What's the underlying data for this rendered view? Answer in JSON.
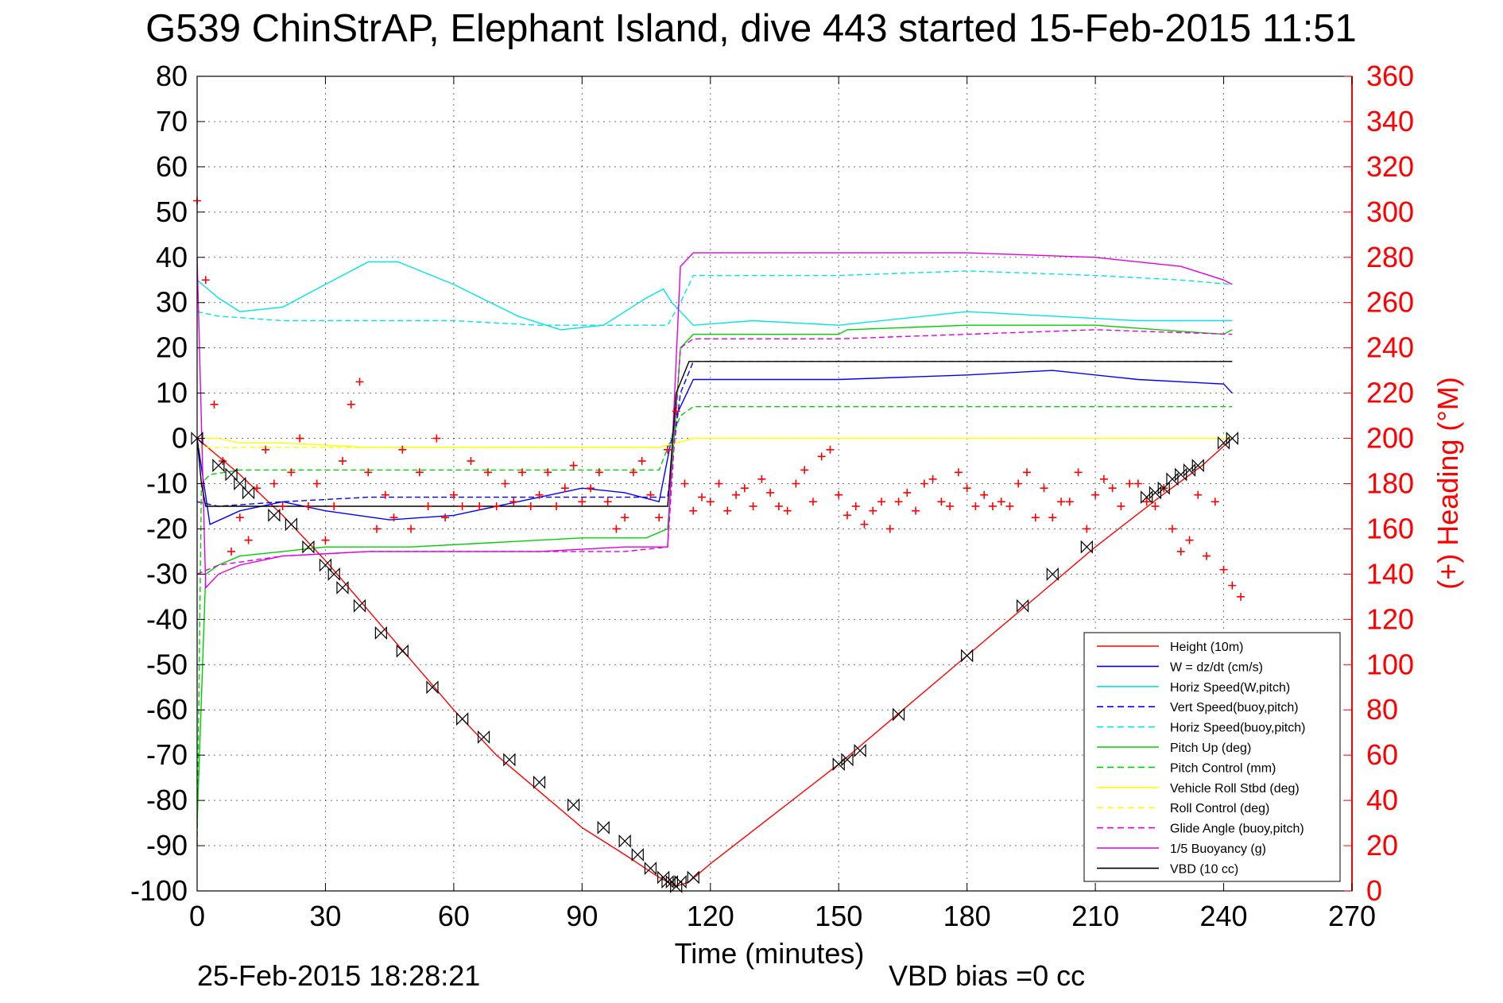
{
  "chart_data": {
    "type": "line",
    "title": "G539 ChinStrAP, Elephant Island, dive 443 started 15-Feb-2015 11:51",
    "xlabel": "Time (minutes)",
    "ylabel_right": "(+) Heading (°M)",
    "xlim": [
      0,
      270
    ],
    "ylim": [
      -100,
      80
    ],
    "y2lim": [
      0,
      360
    ],
    "x_ticks": [
      0,
      30,
      60,
      90,
      120,
      150,
      180,
      210,
      240,
      270
    ],
    "y_ticks": [
      -100,
      -90,
      -80,
      -70,
      -60,
      -50,
      -40,
      -30,
      -20,
      -10,
      0,
      10,
      20,
      30,
      40,
      50,
      60,
      70,
      80
    ],
    "y2_ticks": [
      0,
      20,
      40,
      60,
      80,
      100,
      120,
      140,
      160,
      180,
      200,
      220,
      240,
      260,
      280,
      300,
      320,
      340,
      360
    ],
    "grid": true,
    "legend_position": "bottom-right",
    "footer_left": "25-Feb-2015 18:28:21",
    "footer_right": "VBD bias =0 cc",
    "series": [
      {
        "name": "Height (10m)",
        "color": "#ff0000",
        "style": "solid",
        "x": [
          0,
          10,
          20,
          30,
          40,
          50,
          60,
          70,
          80,
          90,
          100,
          108,
          112,
          115,
          120,
          135,
          150,
          165,
          180,
          195,
          210,
          225,
          235,
          242
        ],
        "y": [
          0,
          -8,
          -17,
          -27,
          -38,
          -49,
          -60,
          -70,
          -78,
          -86,
          -92,
          -97,
          -99,
          -98,
          -94,
          -83,
          -72,
          -60,
          -48,
          -36,
          -24,
          -13,
          -6,
          0
        ]
      },
      {
        "name": "W = dz/dt (cm/s)",
        "color": "#0000ff",
        "style": "solid",
        "x": [
          0,
          3,
          10,
          20,
          30,
          45,
          60,
          75,
          90,
          100,
          108,
          112,
          116,
          130,
          150,
          180,
          200,
          220,
          240,
          242
        ],
        "y": [
          0,
          -19,
          -16,
          -14,
          -16,
          -18,
          -17,
          -14,
          -11,
          -12,
          -14,
          5,
          13,
          13,
          13,
          14,
          15,
          13,
          12,
          10
        ]
      },
      {
        "name": "Horiz Speed(W,pitch)",
        "color": "#00e5e5",
        "style": "solid",
        "x": [
          0,
          5,
          10,
          20,
          30,
          40,
          47,
          60,
          75,
          85,
          95,
          105,
          109,
          111,
          116,
          130,
          150,
          180,
          200,
          220,
          242
        ],
        "y": [
          35,
          31,
          28,
          29,
          34,
          39,
          39,
          34,
          27,
          24,
          25,
          31,
          33,
          30,
          25,
          26,
          25,
          28,
          27,
          26,
          26
        ]
      },
      {
        "name": "Vert Speed(buoy,pitch)",
        "color": "#0000ff",
        "style": "dashed",
        "x": [
          0,
          5,
          20,
          40,
          60,
          80,
          100,
          110,
          113,
          116,
          140,
          170,
          200,
          230,
          242
        ],
        "y": [
          -14,
          -15,
          -14,
          -13,
          -13,
          -13,
          -13,
          -13,
          10,
          17,
          17,
          17,
          17,
          17,
          17
        ]
      },
      {
        "name": "Horiz Speed(buoy,pitch)",
        "color": "#00e5e5",
        "style": "dashed",
        "x": [
          0,
          5,
          20,
          40,
          60,
          80,
          100,
          110,
          113,
          116,
          150,
          180,
          210,
          230,
          242
        ],
        "y": [
          28,
          27,
          26,
          26,
          26,
          25,
          25,
          25,
          30,
          36,
          36,
          37,
          36,
          35,
          34
        ]
      },
      {
        "name": "Pitch Up (deg)",
        "color": "#00d000",
        "style": "solid",
        "x": [
          0,
          2,
          5,
          10,
          20,
          30,
          50,
          70,
          90,
          105,
          110,
          113,
          116,
          150,
          152,
          180,
          210,
          240,
          242
        ],
        "y": [
          -85,
          -30,
          -28,
          -26,
          -25,
          -24,
          -24,
          -23,
          -22,
          -22,
          -20,
          20,
          23,
          23,
          24,
          25,
          25,
          23,
          24
        ]
      },
      {
        "name": "Pitch Control (mm)",
        "color": "#00d000",
        "style": "dashed",
        "x": [
          0,
          1,
          3,
          10,
          40,
          80,
          108,
          113,
          116,
          150,
          180,
          210,
          242
        ],
        "y": [
          -90,
          -10,
          -8,
          -7,
          -7,
          -7,
          -7,
          5,
          7,
          7,
          7,
          7,
          7
        ]
      },
      {
        "name": "Vehicle Roll Stbd (deg)",
        "color": "#ffff00",
        "style": "solid",
        "x": [
          0,
          5,
          10,
          20,
          40,
          60,
          80,
          100,
          108,
          112,
          116,
          140,
          170,
          200,
          230,
          242
        ],
        "y": [
          0,
          0,
          -1,
          -1,
          -2,
          -2,
          -2,
          -2,
          -2,
          -1,
          0,
          0,
          0,
          0,
          0,
          0
        ]
      },
      {
        "name": "Roll Control (deg)",
        "color": "#ffff00",
        "style": "dashed",
        "x": [
          0,
          10,
          40,
          80,
          108,
          112,
          116,
          150,
          200,
          242
        ],
        "y": [
          -2,
          -2,
          -2,
          -2,
          -2,
          -1,
          0,
          0,
          0,
          0
        ]
      },
      {
        "name": "Glide Angle (buoy,pitch)",
        "color": "#e000e0",
        "style": "dashed",
        "x": [
          0,
          5,
          20,
          40,
          60,
          80,
          100,
          110,
          113,
          116,
          150,
          180,
          210,
          242
        ],
        "y": [
          -30,
          -28,
          -26,
          -25,
          -25,
          -25,
          -25,
          -24,
          20,
          22,
          22,
          23,
          24,
          23
        ]
      },
      {
        "name": "1/5 Buoyancy (g)",
        "color": "#e000e0",
        "style": "solid",
        "x": [
          0,
          2,
          5,
          10,
          20,
          40,
          60,
          80,
          100,
          110,
          113,
          116,
          150,
          180,
          210,
          230,
          240,
          242
        ],
        "y": [
          40,
          -33,
          -30,
          -28,
          -26,
          -25,
          -25,
          -25,
          -24,
          -24,
          38,
          41,
          41,
          41,
          40,
          38,
          35,
          34
        ]
      },
      {
        "name": "VBD (10 cc)",
        "color": "#000000",
        "style": "solid",
        "x": [
          0,
          1,
          2,
          110,
          112,
          115,
          242
        ],
        "y": [
          0,
          -10,
          -15,
          -15,
          10,
          17,
          17
        ]
      }
    ],
    "heading_series": {
      "name": "Heading (°M)",
      "color": "#ff0000",
      "marker": "+",
      "axis": "right",
      "x": [
        0,
        2,
        4,
        6,
        8,
        10,
        12,
        14,
        16,
        18,
        20,
        22,
        24,
        26,
        28,
        30,
        32,
        34,
        36,
        38,
        40,
        42,
        44,
        46,
        48,
        50,
        52,
        54,
        56,
        58,
        60,
        62,
        64,
        66,
        68,
        70,
        72,
        74,
        76,
        78,
        80,
        82,
        84,
        86,
        88,
        90,
        92,
        94,
        96,
        98,
        100,
        102,
        104,
        106,
        108,
        110,
        112,
        114,
        116,
        118,
        120,
        122,
        124,
        126,
        128,
        130,
        132,
        134,
        136,
        138,
        140,
        142,
        144,
        146,
        148,
        150,
        152,
        154,
        156,
        158,
        160,
        162,
        164,
        166,
        168,
        170,
        172,
        174,
        176,
        178,
        180,
        182,
        184,
        186,
        188,
        190,
        192,
        194,
        196,
        198,
        200,
        202,
        204,
        206,
        208,
        210,
        212,
        214,
        216,
        218,
        220,
        222,
        224,
        226,
        228,
        230,
        232,
        234,
        236,
        238,
        240,
        242,
        244
      ],
      "y": [
        305,
        270,
        215,
        190,
        150,
        165,
        155,
        178,
        195,
        180,
        170,
        185,
        200,
        170,
        180,
        155,
        170,
        190,
        215,
        225,
        185,
        160,
        175,
        165,
        195,
        160,
        185,
        170,
        200,
        165,
        175,
        170,
        190,
        170,
        185,
        170,
        180,
        172,
        185,
        170,
        175,
        185,
        170,
        178,
        188,
        172,
        178,
        185,
        172,
        160,
        165,
        185,
        190,
        175,
        165,
        195,
        212,
        180,
        168,
        174,
        172,
        180,
        168,
        175,
        178,
        170,
        182,
        176,
        170,
        168,
        180,
        186,
        172,
        192,
        195,
        175,
        166,
        170,
        162,
        168,
        172,
        160,
        172,
        176,
        168,
        180,
        182,
        172,
        170,
        185,
        178,
        170,
        175,
        170,
        172,
        170,
        180,
        185,
        165,
        178,
        165,
        172,
        172,
        185,
        160,
        175,
        182,
        178,
        170,
        180,
        180,
        172,
        170,
        178,
        160,
        150,
        155,
        175,
        148,
        172,
        142,
        135,
        130
      ]
    },
    "dive_markers": {
      "marker": "hourglass",
      "color": "#000000",
      "x": [
        0,
        5,
        8,
        10,
        12,
        18,
        22,
        26,
        30,
        32,
        34,
        38,
        43,
        48,
        55,
        62,
        67,
        73,
        80,
        88,
        95,
        100,
        103,
        106,
        109,
        110,
        111,
        112,
        113,
        116,
        150,
        152,
        155,
        164,
        180,
        193,
        200,
        208,
        222,
        224,
        226,
        228,
        230,
        232,
        234,
        240,
        242
      ],
      "y": [
        0,
        -6,
        -8,
        -10,
        -12,
        -17,
        -19,
        -24,
        -28,
        -30,
        -33,
        -37,
        -43,
        -47,
        -55,
        -62,
        -66,
        -71,
        -76,
        -81,
        -86,
        -89,
        -92,
        -95,
        -97,
        -98,
        -98,
        -99,
        -98,
        -97,
        -72,
        -71,
        -69,
        -61,
        -48,
        -37,
        -30,
        -24,
        -13,
        -12,
        -11,
        -9,
        -8,
        -7,
        -6,
        -1,
        0
      ]
    }
  }
}
